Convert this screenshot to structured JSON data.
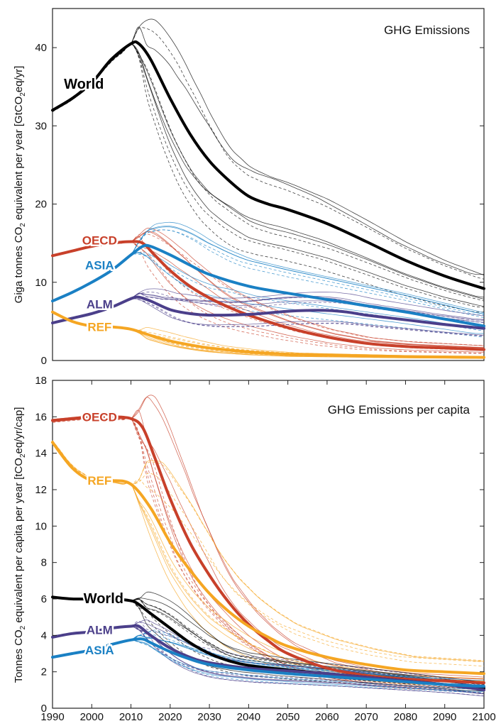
{
  "chart_data": [
    {
      "type": "line",
      "title": "GHG Emissions",
      "ylabel": "Giga tonnes CO2 equivalent per year [GtCO2eq/yr]",
      "ylabel_parts": [
        "Giga tonnes CO",
        "2",
        " equivalent per year [GtCO",
        "2",
        "eq/yr]"
      ],
      "xlim": [
        1990,
        2100
      ],
      "ylim": [
        0,
        45
      ],
      "yticks": [
        0,
        10,
        20,
        30,
        40
      ],
      "grid": false,
      "series": [
        {
          "name": "World",
          "color": "#000000",
          "x": [
            1990,
            1995,
            2000,
            2005,
            2010,
            2012,
            2015,
            2020,
            2025,
            2030,
            2035,
            2040,
            2045,
            2050,
            2060,
            2070,
            2080,
            2090,
            2100
          ],
          "y": [
            32,
            33.5,
            35.5,
            38.5,
            40.5,
            40.5,
            38.5,
            33.5,
            29,
            25.5,
            23,
            21,
            20,
            19.3,
            17.5,
            15.2,
            12.8,
            10.8,
            9.2
          ]
        },
        {
          "name": "OECD",
          "color": "#c8402a",
          "x": [
            1990,
            1995,
            2000,
            2005,
            2010,
            2013,
            2016,
            2020,
            2025,
            2030,
            2035,
            2040,
            2050,
            2060,
            2070,
            2080,
            2090,
            2100
          ],
          "y": [
            13.4,
            14,
            14.6,
            15,
            15.2,
            15,
            13.5,
            11.5,
            9.5,
            8,
            6.8,
            5.8,
            4.2,
            3,
            2.2,
            1.8,
            1.6,
            1.4
          ]
        },
        {
          "name": "ASIA",
          "color": "#1a80c4",
          "x": [
            1990,
            1995,
            2000,
            2005,
            2010,
            2013,
            2015,
            2020,
            2025,
            2030,
            2040,
            2050,
            2060,
            2070,
            2080,
            2090,
            2100
          ],
          "y": [
            7.6,
            8.7,
            10,
            11.5,
            13.5,
            14.6,
            14.6,
            13.5,
            12.2,
            11,
            9.5,
            8.6,
            7.8,
            7,
            6.2,
            5.3,
            4.4
          ]
        },
        {
          "name": "ALM",
          "color": "#4b3f8a",
          "x": [
            1990,
            1995,
            2000,
            2005,
            2010,
            2012,
            2015,
            2020,
            2025,
            2030,
            2040,
            2050,
            2055,
            2060,
            2065,
            2070,
            2080,
            2090,
            2100
          ],
          "y": [
            4.8,
            5.4,
            6,
            6.8,
            7.9,
            8.1,
            7.6,
            6.5,
            6,
            5.8,
            5.9,
            6.3,
            6.4,
            6.4,
            6.2,
            5.8,
            5.2,
            4.6,
            4.1
          ]
        },
        {
          "name": "REF",
          "color": "#f5a623",
          "x": [
            1990,
            1995,
            2000,
            2005,
            2010,
            2015,
            2020,
            2025,
            2030,
            2040,
            2050,
            2060,
            2070,
            2080,
            2090,
            2100
          ],
          "y": [
            6.2,
            5,
            4.4,
            4.3,
            4,
            3.2,
            2.5,
            2,
            1.6,
            1.1,
            0.8,
            0.7,
            0.6,
            0.5,
            0.45,
            0.4
          ]
        }
      ]
    },
    {
      "type": "line",
      "title": "GHG Emissions per capita",
      "ylabel": "Tonnes CO2 equivalent per capita per year [tCO2eq/yr/cap]",
      "ylabel_parts": [
        "Tonnes CO",
        "2",
        " equivalent per capita per year [tCO",
        "2",
        "eq/yr/cap]"
      ],
      "xlim": [
        1990,
        2100
      ],
      "ylim": [
        0,
        18
      ],
      "xticks": [
        1990,
        2000,
        2010,
        2020,
        2030,
        2040,
        2050,
        2060,
        2070,
        2080,
        2090,
        2100
      ],
      "yticks": [
        0,
        2,
        4,
        6,
        8,
        10,
        12,
        14,
        16,
        18
      ],
      "grid": false,
      "series": [
        {
          "name": "OECD",
          "color": "#c8402a",
          "x": [
            1990,
            1995,
            2000,
            2005,
            2010,
            2013,
            2016,
            2020,
            2025,
            2030,
            2035,
            2040,
            2045,
            2050,
            2060,
            2070,
            2080,
            2090,
            2100
          ],
          "y": [
            15.8,
            15.9,
            16,
            16,
            15.9,
            15.4,
            13.8,
            11.5,
            9.1,
            7.3,
            5.8,
            4.6,
            3.7,
            3.0,
            2.2,
            1.8,
            1.6,
            1.5,
            1.4
          ]
        },
        {
          "name": "REF",
          "color": "#f5a623",
          "x": [
            1990,
            1995,
            2000,
            2005,
            2010,
            2015,
            2020,
            2025,
            2030,
            2035,
            2040,
            2045,
            2050,
            2060,
            2070,
            2080,
            2090,
            2100
          ],
          "y": [
            14.6,
            13.2,
            12.5,
            12.5,
            12.3,
            11,
            9.1,
            7.6,
            6.3,
            5.3,
            4.5,
            3.9,
            3.4,
            2.8,
            2.4,
            2.1,
            2.0,
            1.9
          ]
        },
        {
          "name": "World",
          "color": "#000000",
          "x": [
            1990,
            1995,
            2000,
            2005,
            2010,
            2012,
            2015,
            2020,
            2025,
            2030,
            2035,
            2040,
            2050,
            2060,
            2070,
            2080,
            2090,
            2100
          ],
          "y": [
            6.1,
            6,
            6,
            6,
            5.9,
            5.7,
            5.2,
            4.4,
            3.6,
            3.0,
            2.6,
            2.35,
            2.1,
            1.9,
            1.7,
            1.5,
            1.3,
            1.1
          ]
        },
        {
          "name": "ALM",
          "color": "#4b3f8a",
          "x": [
            1990,
            1995,
            2000,
            2005,
            2010,
            2012,
            2015,
            2020,
            2025,
            2030,
            2040,
            2050,
            2060,
            2070,
            2080,
            2090,
            2100
          ],
          "y": [
            3.9,
            4.1,
            4.2,
            4.4,
            4.5,
            4.5,
            4.0,
            3.3,
            2.8,
            2.5,
            2.2,
            2.05,
            1.9,
            1.7,
            1.5,
            1.3,
            1.0
          ]
        },
        {
          "name": "ASIA",
          "color": "#1a80c4",
          "x": [
            1990,
            1995,
            2000,
            2005,
            2010,
            2013,
            2015,
            2020,
            2025,
            2030,
            2040,
            2050,
            2060,
            2070,
            2080,
            2090,
            2100
          ],
          "y": [
            2.8,
            3.0,
            3.2,
            3.5,
            3.75,
            3.8,
            3.6,
            3.1,
            2.7,
            2.4,
            2.1,
            1.9,
            1.75,
            1.6,
            1.45,
            1.3,
            1.2
          ]
        }
      ]
    }
  ],
  "colors": {
    "World": "#000000",
    "OECD": "#c8402a",
    "ASIA": "#1a80c4",
    "ALM": "#4b3f8a",
    "REF": "#f5a623"
  }
}
